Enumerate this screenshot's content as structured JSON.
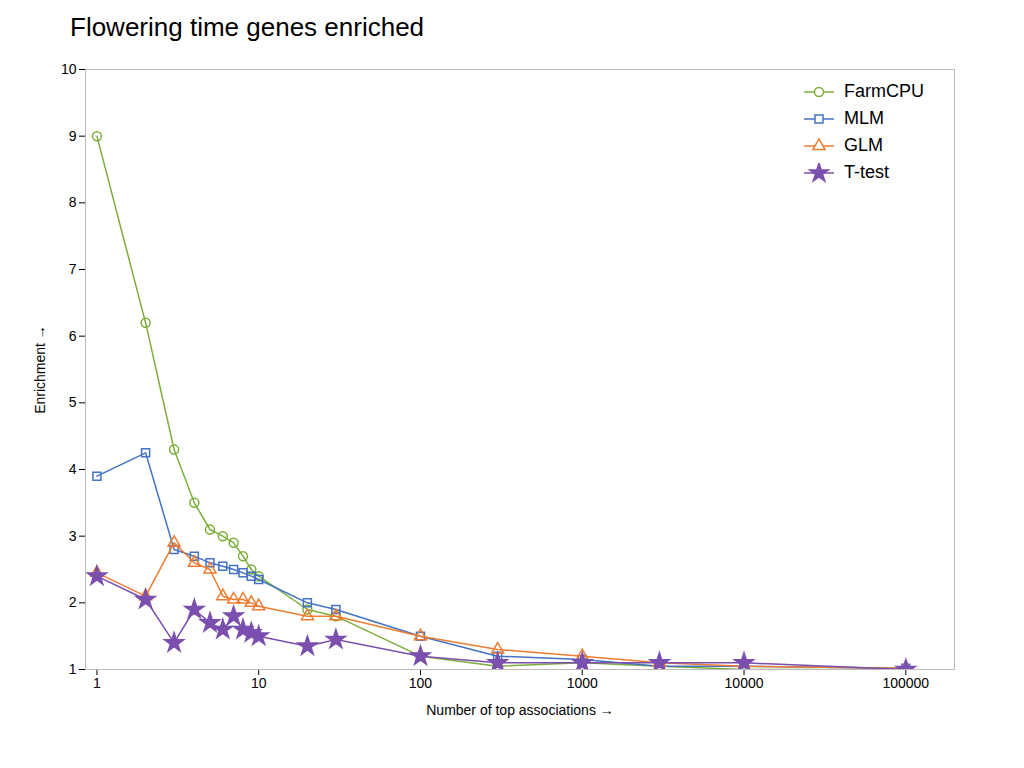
{
  "chart_data": {
    "type": "line",
    "title": "Flowering time genes enriched",
    "xlabel": "Number of top associations",
    "ylabel": "Enrichment",
    "log": "x",
    "grid": false,
    "legend": "upper right",
    "xlim": [
      0.85,
      200000
    ],
    "xticks": [
      1,
      10,
      100,
      1000,
      10000,
      100000
    ],
    "ylim": [
      1,
      10
    ],
    "yticks": [
      1,
      2,
      3,
      4,
      5,
      6,
      7,
      8,
      9,
      10
    ],
    "x": [
      1,
      2,
      3,
      4,
      5,
      6,
      7,
      8,
      9,
      10,
      20,
      30,
      100,
      300,
      1000,
      3000,
      10000,
      100000
    ],
    "series": [
      {
        "name": "FarmCPU",
        "color": "#7BAF3A",
        "marker": "circle",
        "values": [
          9.0,
          6.2,
          4.3,
          3.5,
          3.1,
          3.0,
          2.9,
          2.7,
          2.5,
          2.4,
          1.9,
          1.8,
          1.2,
          1.05,
          1.1,
          1.05,
          1.0,
          1.0
        ]
      },
      {
        "name": "MLM",
        "color": "#4472C4",
        "marker": "square",
        "values": [
          3.9,
          4.25,
          2.8,
          2.7,
          2.6,
          2.55,
          2.5,
          2.45,
          2.4,
          2.35,
          2.0,
          1.9,
          1.5,
          1.2,
          1.15,
          1.05,
          1.05,
          1.02
        ]
      },
      {
        "name": "GLM",
        "color": "#ED7D31",
        "marker": "triangle",
        "values": [
          2.45,
          2.1,
          2.9,
          2.6,
          2.5,
          2.1,
          2.05,
          2.05,
          2.0,
          1.95,
          1.8,
          1.8,
          1.5,
          1.3,
          1.2,
          1.1,
          1.05,
          1.02
        ]
      },
      {
        "name": "T-test",
        "color": "#7B4FAE",
        "marker": "star",
        "values": [
          2.4,
          2.05,
          1.4,
          1.9,
          1.7,
          1.6,
          1.8,
          1.6,
          1.55,
          1.5,
          1.35,
          1.45,
          1.2,
          1.1,
          1.1,
          1.1,
          1.1,
          1.0
        ]
      }
    ]
  }
}
